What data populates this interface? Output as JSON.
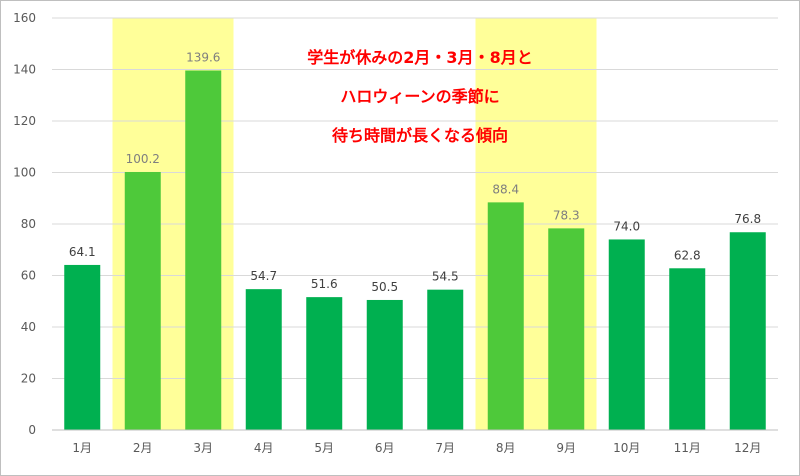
{
  "chart_data": {
    "type": "bar",
    "categories": [
      "1月",
      "2月",
      "3月",
      "4月",
      "5月",
      "6月",
      "7月",
      "8月",
      "9月",
      "10月",
      "11月",
      "12月"
    ],
    "values": [
      64.1,
      100.2,
      139.6,
      54.7,
      51.6,
      50.5,
      54.5,
      88.4,
      78.3,
      74.0,
      62.8,
      76.8
    ],
    "value_labels": [
      "64.1",
      "100.2",
      "139.6",
      "54.7",
      "51.6",
      "50.5",
      "54.5",
      "88.4",
      "78.3",
      "74.0",
      "62.8",
      "76.8"
    ],
    "highlighted_categories": [
      "2月",
      "3月",
      "8月",
      "9月"
    ],
    "ylim": [
      0,
      160
    ],
    "y_ticks": [
      "0",
      "20",
      "40",
      "60",
      "80",
      "100",
      "120",
      "140",
      "160"
    ],
    "title": "",
    "xlabel": "",
    "ylabel": "",
    "grid": true,
    "legend": "none",
    "annotation_lines": [
      "学生が休みの2月・3月・8月と",
      "ハロウィーンの季節に",
      "待ち時間が長くなる傾向"
    ],
    "colors": {
      "bar": "#00b050",
      "bar_highlighted": "#4ec93a",
      "highlight_band": "#ffff99",
      "annotation_text": "#ff0000",
      "gridline": "#d9d9d9",
      "frame": "#bfbfbf",
      "axis_text": "#595959",
      "label_normal": "#404040",
      "label_highlighted": "#7f7f7f"
    }
  }
}
